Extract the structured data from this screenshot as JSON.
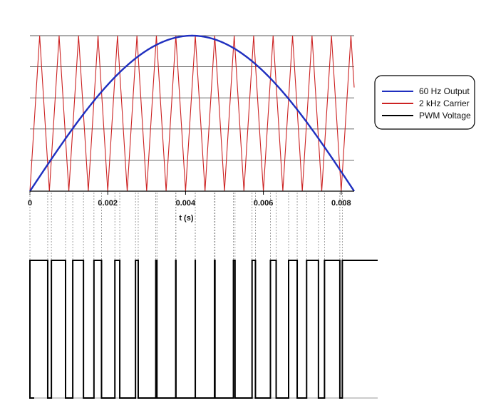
{
  "chart_data": {
    "type": "line",
    "xlabel": "t (s)",
    "xlim": [
      0,
      0.0083333
    ],
    "ylim": [
      0,
      1
    ],
    "xticks": [
      0,
      0.002,
      0.004,
      0.006,
      0.008
    ],
    "xtick_labels": [
      "0",
      "0.002",
      "0.004",
      "0.006",
      "0.008"
    ],
    "grid": "horizontal",
    "legend_position": "right",
    "series": [
      {
        "name": "60 Hz Output",
        "color": "#1f2fbf",
        "kind": "sine",
        "frequency_hz": 60,
        "amplitude": 1
      },
      {
        "name": "2 kHz Carrier",
        "color": "#cc2222",
        "kind": "triangle",
        "frequency_hz": 2000,
        "amplitude": 1
      },
      {
        "name": "PWM Voltage",
        "color": "#000000",
        "kind": "pwm",
        "levels": [
          0,
          1
        ]
      }
    ],
    "legend": [
      "60 Hz Output",
      "2 kHz Carrier",
      "PWM Voltage"
    ]
  }
}
